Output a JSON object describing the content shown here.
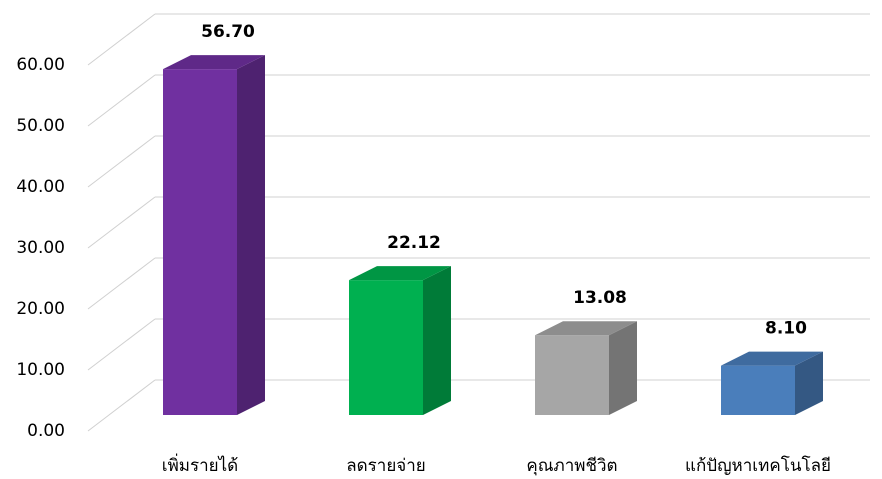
{
  "chart_data": {
    "type": "bar3d",
    "categories": [
      "เพิ่มรายได้",
      "ลดรายจ่าย",
      "คุณภาพชีวิต",
      "แก้ปัญหาเทคโนโลยี"
    ],
    "values": [
      56.7,
      22.12,
      13.08,
      8.1
    ],
    "value_labels": [
      "56.70",
      "22.12",
      "13.08",
      "8.10"
    ],
    "colors": [
      "#7030a0",
      "#00b050",
      "#a6a6a6",
      "#4a7ebb"
    ],
    "ylim": [
      0,
      60
    ],
    "yticks": [
      {
        "value": 0,
        "label": "0.00"
      },
      {
        "value": 10,
        "label": "10.00"
      },
      {
        "value": 20,
        "label": "20.00"
      },
      {
        "value": 30,
        "label": "30.00"
      },
      {
        "value": 40,
        "label": "40.00"
      },
      {
        "value": 50,
        "label": "50.00"
      },
      {
        "value": 60,
        "label": "60.00"
      }
    ],
    "grid": true
  }
}
